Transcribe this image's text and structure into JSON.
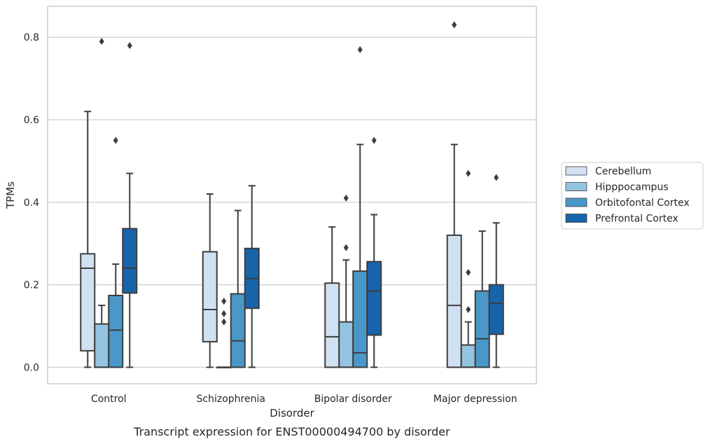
{
  "chart_data": {
    "type": "box",
    "caption": "Transcript expression for ENST00000494700 by disorder",
    "xlabel": "Disorder",
    "ylabel": "TPMs",
    "ylim": [
      -0.04,
      0.875
    ],
    "yticks": [
      "0.0",
      "0.2",
      "0.4",
      "0.6",
      "0.8"
    ],
    "ytick_values": [
      0.0,
      0.2,
      0.4,
      0.6,
      0.8
    ],
    "grid": "horizontal",
    "legend_position": "right",
    "categories": [
      "Control",
      "Schizophrenia",
      "Bipolar disorder",
      "Major depression"
    ],
    "series": [
      {
        "name": "Cerebellum",
        "color": "#d0e1f2",
        "boxes": [
          {
            "whisker_low": 0.0,
            "q1": 0.04,
            "median": 0.24,
            "q3": 0.275,
            "whisker_high": 0.62,
            "outliers": []
          },
          {
            "whisker_low": 0.0,
            "q1": 0.062,
            "median": 0.14,
            "q3": 0.28,
            "whisker_high": 0.42,
            "outliers": []
          },
          {
            "whisker_low": 0.0,
            "q1": 0.0,
            "median": 0.074,
            "q3": 0.204,
            "whisker_high": 0.34,
            "outliers": []
          },
          {
            "whisker_low": 0.0,
            "q1": 0.0,
            "median": 0.15,
            "q3": 0.32,
            "whisker_high": 0.54,
            "outliers": [
              0.83
            ]
          }
        ]
      },
      {
        "name": "Hipppocampus",
        "color": "#94c4df",
        "boxes": [
          {
            "whisker_low": 0.0,
            "q1": 0.0,
            "median": 0.0,
            "q3": 0.105,
            "whisker_high": 0.15,
            "outliers": [
              0.79
            ]
          },
          {
            "whisker_low": 0.0,
            "q1": 0.0,
            "median": 0.0,
            "q3": 0.0,
            "whisker_high": 0.0,
            "outliers": [
              0.11,
              0.13,
              0.16
            ]
          },
          {
            "whisker_low": 0.0,
            "q1": 0.0,
            "median": 0.0,
            "q3": 0.11,
            "whisker_high": 0.26,
            "outliers": [
              0.29,
              0.41
            ]
          },
          {
            "whisker_low": 0.0,
            "q1": 0.0,
            "median": 0.0,
            "q3": 0.054,
            "whisker_high": 0.11,
            "outliers": [
              0.14,
              0.23,
              0.47
            ]
          }
        ]
      },
      {
        "name": "Orbitofontal Cortex",
        "color": "#4a98c9",
        "boxes": [
          {
            "whisker_low": 0.0,
            "q1": 0.0,
            "median": 0.09,
            "q3": 0.174,
            "whisker_high": 0.25,
            "outliers": [
              0.55
            ]
          },
          {
            "whisker_low": 0.0,
            "q1": 0.0,
            "median": 0.064,
            "q3": 0.178,
            "whisker_high": 0.38,
            "outliers": []
          },
          {
            "whisker_low": 0.0,
            "q1": 0.0,
            "median": 0.035,
            "q3": 0.233,
            "whisker_high": 0.54,
            "outliers": [
              0.77
            ]
          },
          {
            "whisker_low": 0.0,
            "q1": 0.0,
            "median": 0.069,
            "q3": 0.185,
            "whisker_high": 0.33,
            "outliers": []
          }
        ]
      },
      {
        "name": "Prefrontal Cortex",
        "color": "#1764ab",
        "boxes": [
          {
            "whisker_low": 0.0,
            "q1": 0.18,
            "median": 0.24,
            "q3": 0.336,
            "whisker_high": 0.47,
            "outliers": [
              0.78
            ]
          },
          {
            "whisker_low": 0.0,
            "q1": 0.143,
            "median": 0.215,
            "q3": 0.288,
            "whisker_high": 0.44,
            "outliers": []
          },
          {
            "whisker_low": 0.0,
            "q1": 0.078,
            "median": 0.185,
            "q3": 0.256,
            "whisker_high": 0.37,
            "outliers": [
              0.55
            ]
          },
          {
            "whisker_low": 0.0,
            "q1": 0.08,
            "median": 0.155,
            "q3": 0.2,
            "whisker_high": 0.35,
            "outliers": [
              0.46
            ]
          }
        ]
      }
    ]
  }
}
